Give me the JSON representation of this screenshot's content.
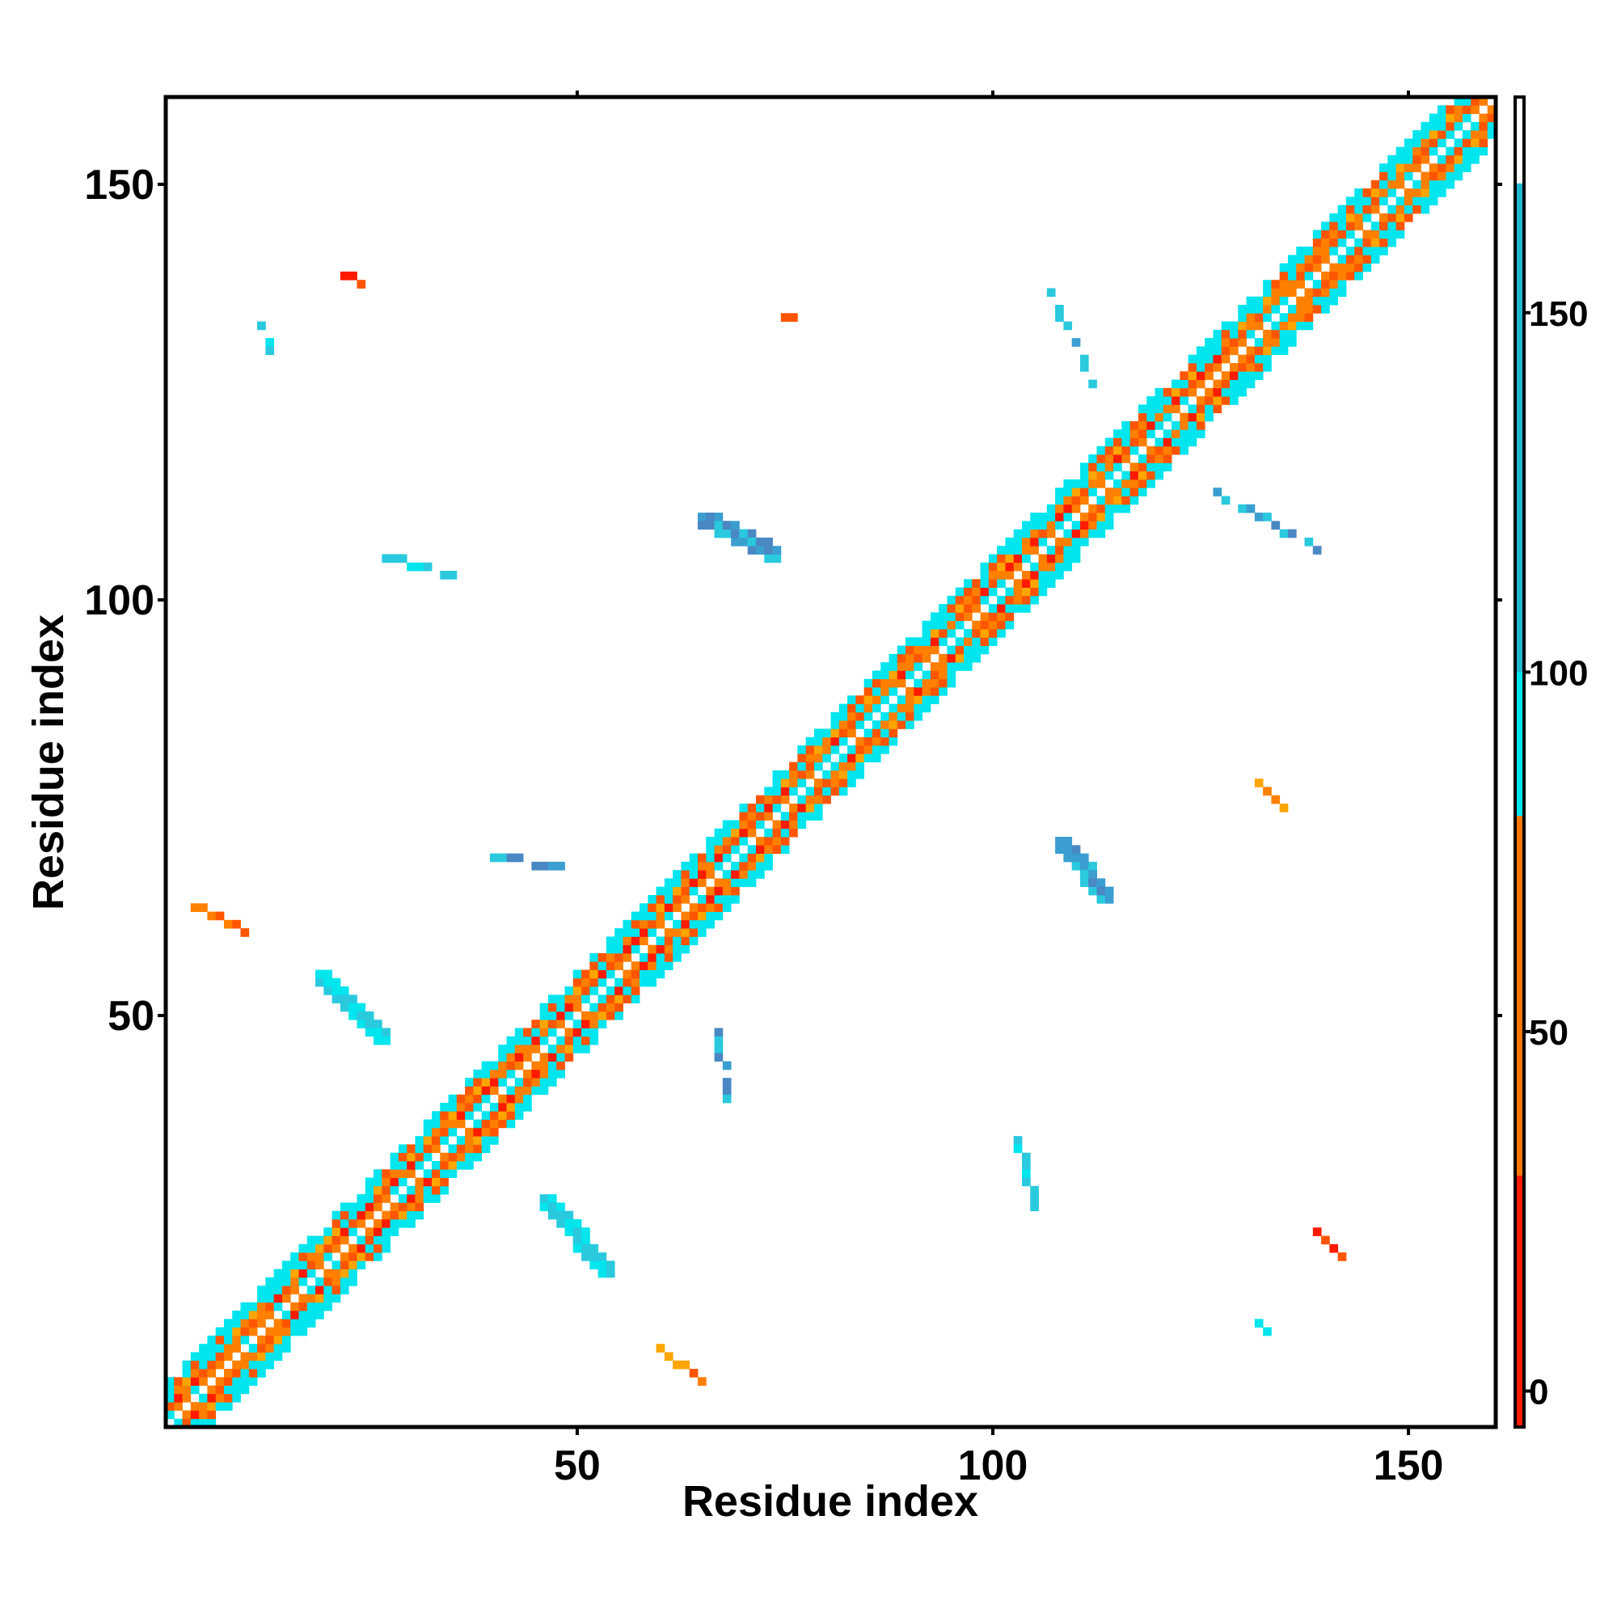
{
  "chart_data": {
    "type": "heatmap",
    "xlabel": "Residue index",
    "ylabel": "Residue index",
    "xlim": [
      1,
      160
    ],
    "ylim": [
      1,
      160
    ],
    "x_ticks": [
      50,
      100,
      150
    ],
    "y_ticks": [
      50,
      100,
      150
    ],
    "grid": false,
    "colorbar": {
      "ticks": [
        0,
        50,
        100,
        150
      ],
      "range": [
        -5,
        180
      ],
      "bands": [
        {
          "from": -5,
          "to": 30,
          "color": "#ff1a00"
        },
        {
          "from": 30,
          "to": 80,
          "color": "#ff7700"
        },
        {
          "from": 80,
          "to": 100,
          "color": "#00e5ee"
        },
        {
          "from": 100,
          "to": 168,
          "color": "#1fb8d0"
        },
        {
          "from": 168,
          "to": 180,
          "color": "#ffffff"
        }
      ]
    },
    "palette": [
      "#ff1a00",
      "#ff5500",
      "#ff7f00",
      "#ffa500",
      "#00e5ee",
      "#2ac9de",
      "#3a9ed0",
      "#4a88c4"
    ],
    "diagonal_band": {
      "from": 1,
      "to": 160,
      "half_width": 5
    },
    "patches": [
      {
        "x0": 65,
        "y0": 109,
        "x1": 73,
        "y1": 105,
        "w": 2,
        "tone": "blue"
      },
      {
        "x0": 108,
        "y0": 70,
        "x1": 113,
        "y1": 64,
        "w": 2,
        "tone": "blue"
      },
      {
        "x0": 27,
        "y0": 105,
        "x1": 35,
        "y1": 103,
        "w": 1,
        "tone": "cyan"
      },
      {
        "x0": 40,
        "y0": 69,
        "x1": 48,
        "y1": 68,
        "w": 1,
        "tone": "blue"
      },
      {
        "x0": 19,
        "y0": 54,
        "x1": 26,
        "y1": 47,
        "w": 2,
        "tone": "cyan"
      },
      {
        "x0": 46,
        "y0": 27,
        "x1": 53,
        "y1": 19,
        "w": 2,
        "tone": "cyan"
      },
      {
        "x0": 67,
        "y0": 48,
        "x1": 68,
        "y1": 40,
        "w": 1,
        "tone": "blue"
      },
      {
        "x0": 103,
        "y0": 35,
        "x1": 105,
        "y1": 27,
        "w": 1,
        "tone": "cyan"
      },
      {
        "x0": 107,
        "y0": 137,
        "x1": 112,
        "y1": 126,
        "w": 1,
        "tone": "blue"
      },
      {
        "x0": 127,
        "y0": 113,
        "x1": 139,
        "y1": 106,
        "w": 1,
        "tone": "blue"
      },
      {
        "x0": 12,
        "y0": 134,
        "x1": 13,
        "y1": 130,
        "w": 1,
        "tone": "cyan"
      },
      {
        "x0": 75,
        "y0": 134,
        "x1": 79,
        "y1": 132,
        "w": 1,
        "tone": "orange"
      },
      {
        "x0": 21,
        "y0": 140,
        "x1": 24,
        "y1": 138,
        "w": 1,
        "tone": "red"
      },
      {
        "x0": 4,
        "y0": 63,
        "x1": 11,
        "y1": 60,
        "w": 1,
        "tone": "orange"
      },
      {
        "x0": 60,
        "y0": 10,
        "x1": 65,
        "y1": 6,
        "w": 1,
        "tone": "orange"
      },
      {
        "x0": 132,
        "y0": 78,
        "x1": 135,
        "y1": 75,
        "w": 1,
        "tone": "orange"
      },
      {
        "x0": 139,
        "y0": 24,
        "x1": 142,
        "y1": 21,
        "w": 1,
        "tone": "red"
      },
      {
        "x0": 131,
        "y0": 13,
        "x1": 134,
        "y1": 12,
        "w": 1,
        "tone": "cyan"
      }
    ]
  }
}
